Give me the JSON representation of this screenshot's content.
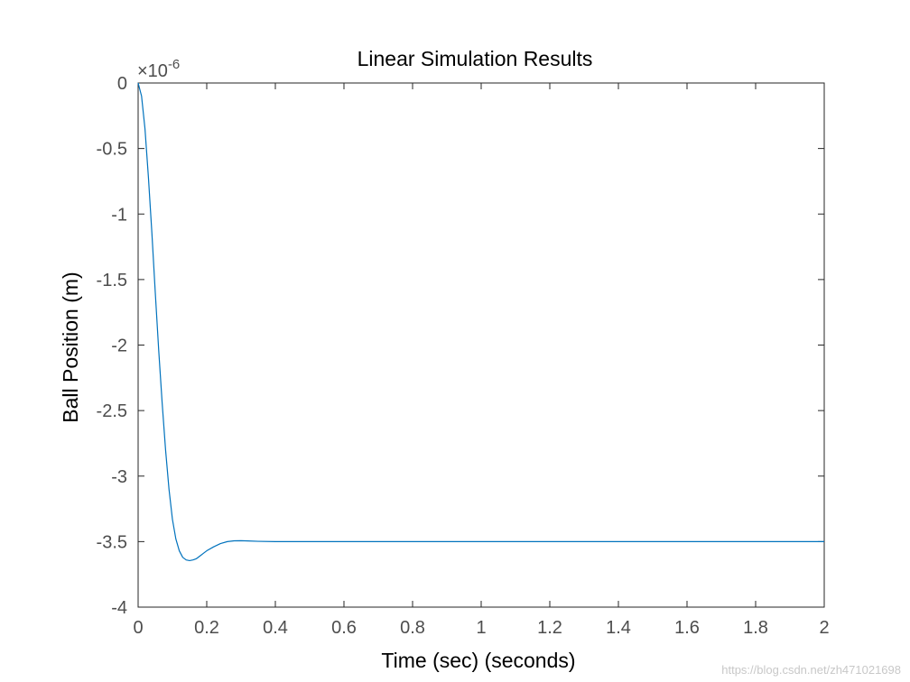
{
  "chart_data": {
    "type": "line",
    "title": "Linear Simulation Results",
    "xlabel": "Time (sec) (seconds)",
    "ylabel": "Ball Position (m)",
    "y_exponent": "×10",
    "y_exponent_power": "-6",
    "xlim": [
      0,
      2
    ],
    "ylim": [
      -4,
      0
    ],
    "y_scale": 1e-06,
    "grid": false,
    "x_ticks": [
      "0",
      "0.2",
      "0.4",
      "0.6",
      "0.8",
      "1",
      "1.2",
      "1.4",
      "1.6",
      "1.8",
      "2"
    ],
    "y_ticks": [
      "0",
      "-0.5",
      "-1",
      "-1.5",
      "-2",
      "-2.5",
      "-3",
      "-3.5",
      "-4"
    ],
    "series": [
      {
        "color": "#0072bd",
        "x": [
          0,
          0.01,
          0.02,
          0.03,
          0.04,
          0.05,
          0.06,
          0.07,
          0.08,
          0.09,
          0.1,
          0.11,
          0.12,
          0.13,
          0.14,
          0.15,
          0.16,
          0.17,
          0.18,
          0.19,
          0.2,
          0.22,
          0.24,
          0.26,
          0.28,
          0.3,
          0.32,
          0.35,
          0.4,
          0.5,
          0.6,
          0.8,
          1.0,
          1.2,
          1.4,
          1.6,
          1.8,
          2.0
        ],
        "y": [
          0,
          -0.1,
          -0.35,
          -0.72,
          -1.14,
          -1.6,
          -2.04,
          -2.44,
          -2.8,
          -3.1,
          -3.33,
          -3.48,
          -3.57,
          -3.62,
          -3.64,
          -3.645,
          -3.64,
          -3.63,
          -3.61,
          -3.59,
          -3.57,
          -3.54,
          -3.515,
          -3.5,
          -3.494,
          -3.493,
          -3.495,
          -3.498,
          -3.5,
          -3.5,
          -3.5,
          -3.5,
          -3.5,
          -3.5,
          -3.5,
          -3.5,
          -3.5,
          -3.5
        ]
      }
    ]
  },
  "watermark": "https://blog.csdn.net/zh471021698"
}
